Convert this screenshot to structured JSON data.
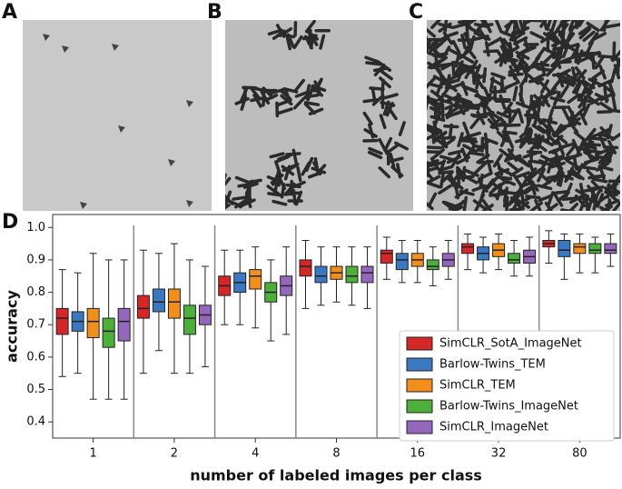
{
  "panel_labels": [
    "A",
    "B",
    "C",
    "D"
  ],
  "chart_data": {
    "type": "box",
    "x_label": "number of labeled images per class",
    "y_label": "accuracy",
    "categories": [
      "1",
      "2",
      "4",
      "8",
      "16",
      "32",
      "80"
    ],
    "ylim": [
      0.35,
      1.04
    ],
    "yticks": [
      0.4,
      0.5,
      0.6,
      0.7,
      0.8,
      0.9,
      {
        "value": 1,
        "label": "1.0"
      }
    ],
    "legend": "lower right",
    "series": [
      {
        "name": "SimCLR_SotA_ImageNet",
        "color": "#d62728",
        "values": [
          [
            0.54,
            0.67,
            0.72,
            0.75,
            0.87
          ],
          [
            0.55,
            0.72,
            0.75,
            0.79,
            0.93
          ],
          [
            0.7,
            0.79,
            0.82,
            0.85,
            0.93
          ],
          [
            0.75,
            0.85,
            0.88,
            0.9,
            0.96
          ],
          [
            0.84,
            0.89,
            0.92,
            0.93,
            0.97
          ],
          [
            0.87,
            0.92,
            0.94,
            0.95,
            0.98
          ],
          [
            0.89,
            0.94,
            0.95,
            0.96,
            0.99
          ]
        ]
      },
      {
        "name": "Barlow-Twins_TEM",
        "color": "#3a78c2",
        "values": [
          [
            0.55,
            0.68,
            0.71,
            0.74,
            0.86
          ],
          [
            0.62,
            0.74,
            0.77,
            0.81,
            0.92
          ],
          [
            0.7,
            0.8,
            0.83,
            0.86,
            0.93
          ],
          [
            0.76,
            0.83,
            0.85,
            0.88,
            0.94
          ],
          [
            0.83,
            0.87,
            0.9,
            0.92,
            0.96
          ],
          [
            0.86,
            0.9,
            0.92,
            0.94,
            0.97
          ],
          [
            0.84,
            0.91,
            0.93,
            0.96,
            0.98
          ]
        ]
      },
      {
        "name": "SimCLR_TEM",
        "color": "#f28e1c",
        "values": [
          [
            0.47,
            0.66,
            0.71,
            0.75,
            0.92
          ],
          [
            0.55,
            0.72,
            0.77,
            0.81,
            0.95
          ],
          [
            0.69,
            0.81,
            0.85,
            0.87,
            0.94
          ],
          [
            0.77,
            0.84,
            0.86,
            0.88,
            0.94
          ],
          [
            0.83,
            0.88,
            0.9,
            0.92,
            0.96
          ],
          [
            0.87,
            0.91,
            0.93,
            0.95,
            0.98
          ],
          [
            0.86,
            0.92,
            0.94,
            0.95,
            0.98
          ]
        ]
      },
      {
        "name": "Barlow-Twins_ImageNet",
        "color": "#4caf3a",
        "values": [
          [
            0.47,
            0.63,
            0.68,
            0.72,
            0.9
          ],
          [
            0.55,
            0.67,
            0.72,
            0.76,
            0.9
          ],
          [
            0.65,
            0.77,
            0.8,
            0.83,
            0.9
          ],
          [
            0.76,
            0.83,
            0.85,
            0.88,
            0.94
          ],
          [
            0.82,
            0.87,
            0.88,
            0.9,
            0.94
          ],
          [
            0.85,
            0.89,
            0.9,
            0.92,
            0.96
          ],
          [
            0.86,
            0.92,
            0.93,
            0.95,
            0.97
          ]
        ]
      },
      {
        "name": "SimCLR_ImageNet",
        "color": "#9467bd",
        "values": [
          [
            0.47,
            0.65,
            0.71,
            0.75,
            0.9
          ],
          [
            0.57,
            0.7,
            0.73,
            0.76,
            0.88
          ],
          [
            0.67,
            0.79,
            0.82,
            0.85,
            0.94
          ],
          [
            0.75,
            0.83,
            0.86,
            0.88,
            0.94
          ],
          [
            0.84,
            0.88,
            0.9,
            0.92,
            0.96
          ],
          [
            0.85,
            0.89,
            0.91,
            0.93,
            0.97
          ],
          [
            0.88,
            0.92,
            0.93,
            0.95,
            0.98
          ]
        ]
      }
    ]
  }
}
